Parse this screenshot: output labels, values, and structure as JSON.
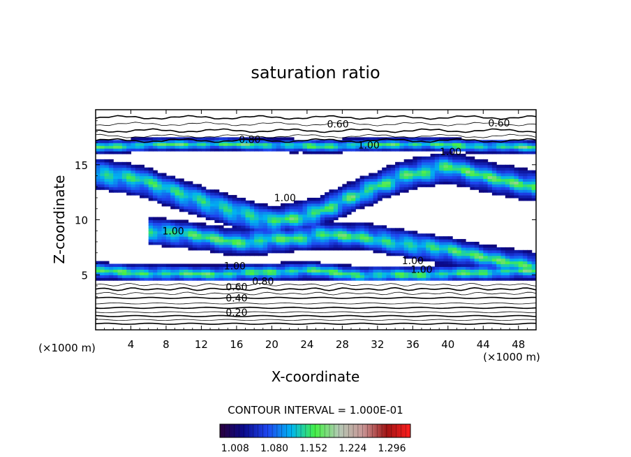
{
  "chart_data": {
    "type": "heatmap",
    "title": "saturation ratio",
    "xlabel": "X-coordinate",
    "ylabel": "Z-coordinate",
    "x_units": "(×1000 m)",
    "y_units": "(×1000 m)",
    "xlim": [
      0,
      50
    ],
    "ylim": [
      0,
      20
    ],
    "x_ticks": [
      4,
      8,
      12,
      16,
      20,
      24,
      28,
      32,
      36,
      40,
      44,
      48
    ],
    "y_ticks": [
      5,
      10,
      15
    ],
    "grid": false,
    "contour_interval_text": "CONTOUR INTERVAL = 1.000E-01",
    "colorbar": {
      "ticks": [
        "1.008",
        "1.080",
        "1.152",
        "1.224",
        "1.296"
      ],
      "range": [
        0.98,
        1.33
      ],
      "stops": [
        "#2a003c",
        "#0a0a8c",
        "#1e46f0",
        "#00b4f0",
        "#46f046",
        "#b4c8b4",
        "#c89696",
        "#a01414",
        "#ff1e1e"
      ]
    },
    "contour_labels": [
      {
        "text": "0.60",
        "x": 27.5,
        "z": 18.7
      },
      {
        "text": "0.60",
        "x": 45.8,
        "z": 18.8
      },
      {
        "text": "0.80",
        "x": 17.5,
        "z": 17.3
      },
      {
        "text": "1.00",
        "x": 31.0,
        "z": 16.8
      },
      {
        "text": "1.00",
        "x": 40.3,
        "z": 16.2
      },
      {
        "text": "1.00",
        "x": 21.5,
        "z": 12.0
      },
      {
        "text": "1.00",
        "x": 8.8,
        "z": 9.0
      },
      {
        "text": "1.00",
        "x": 15.8,
        "z": 5.8
      },
      {
        "text": "1.00",
        "x": 36.0,
        "z": 6.3
      },
      {
        "text": "1.00",
        "x": 37.0,
        "z": 5.5
      },
      {
        "text": "0.80",
        "x": 19.0,
        "z": 4.4
      },
      {
        "text": "0.60",
        "x": 16.0,
        "z": 3.9
      },
      {
        "text": "0.40",
        "x": 16.0,
        "z": 2.9
      },
      {
        "text": "0.20",
        "x": 16.0,
        "z": 1.6
      }
    ],
    "supersaturated_bands": [
      {
        "x": [
          0,
          50
        ],
        "z_center": [
          14.2,
          13.6,
          12.2,
          10.9,
          9.8,
          10.6,
          12.4,
          14.0,
          14.8,
          13.8,
          13.0
        ],
        "width": 1.6
      },
      {
        "x": [
          6,
          50
        ],
        "z_center": [
          9.0,
          8.6,
          8.0,
          8.2,
          8.6,
          8.5,
          7.8,
          7.2,
          6.4,
          5.8
        ],
        "width": 1.4
      },
      {
        "x": [
          0,
          50
        ],
        "z_center": [
          5.4,
          5.2,
          5.1,
          5.1,
          5.3,
          5.4,
          5.0,
          5.0,
          5.1,
          5.3,
          5.4
        ],
        "width": 0.9
      },
      {
        "x": [
          0,
          50
        ],
        "z_center": [
          16.6,
          16.8,
          16.9,
          16.9,
          16.8,
          16.7,
          16.8,
          16.9,
          16.8,
          16.7,
          16.6
        ],
        "width": 0.7
      }
    ]
  }
}
